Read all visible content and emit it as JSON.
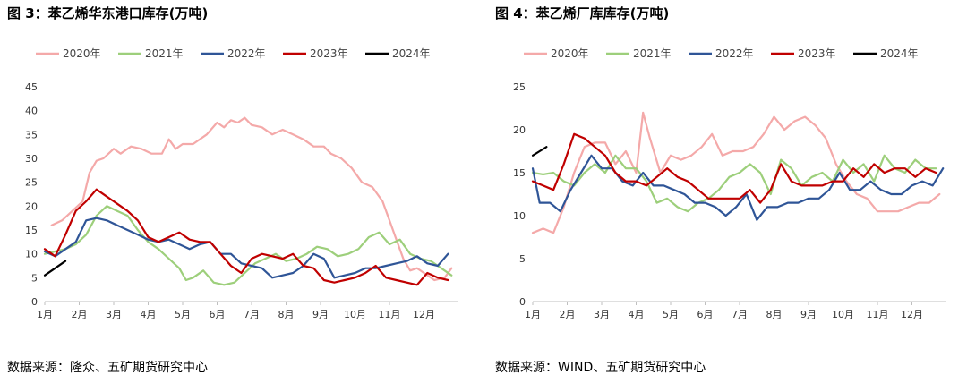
{
  "charts": [
    {
      "title": "图 3：苯乙烯华东港口库存(万吨)",
      "source": "数据来源：隆众、五矿期货研究中心"
    },
    {
      "title": "图 4：苯乙烯厂库库存(万吨)",
      "source": "数据来源：WIND、五矿期货研究中心"
    }
  ],
  "chart_data": [
    {
      "type": "line",
      "title": "图 3：苯乙烯华东港口库存(万吨)",
      "ylim": [
        0,
        45
      ],
      "yticks": [
        0,
        5,
        10,
        15,
        20,
        25,
        30,
        35,
        40,
        45
      ],
      "xlim": [
        1,
        13
      ],
      "xticks": [
        "1月",
        "2月",
        "3月",
        "4月",
        "5月",
        "6月",
        "7月",
        "8月",
        "9月",
        "10月",
        "11月",
        "12月"
      ],
      "legend_position": "top",
      "grid": false,
      "series": [
        {
          "name": "2020年",
          "color": "#f4a9a9",
          "x": [
            1.2,
            1.5,
            1.8,
            2.1,
            2.3,
            2.5,
            2.7,
            3.0,
            3.2,
            3.5,
            3.8,
            4.1,
            4.4,
            4.6,
            4.8,
            5.0,
            5.3,
            5.7,
            6.0,
            6.2,
            6.4,
            6.6,
            6.8,
            7.0,
            7.3,
            7.6,
            7.9,
            8.2,
            8.5,
            8.8,
            9.1,
            9.3,
            9.6,
            9.9,
            10.2,
            10.5,
            10.8,
            11.0,
            11.2,
            11.4,
            11.6,
            11.8,
            12.0,
            12.3,
            12.6,
            12.8
          ],
          "values": [
            16,
            17,
            19,
            21,
            27,
            29.5,
            30,
            32,
            31,
            32.5,
            32,
            31,
            31,
            34,
            32,
            33,
            33,
            35,
            37.5,
            36.5,
            38,
            37.5,
            38.5,
            37,
            36.5,
            35,
            36,
            35,
            34,
            32.5,
            32.5,
            31,
            30,
            28,
            25,
            24,
            21,
            17,
            13,
            9,
            6.5,
            7,
            6,
            4.5,
            5,
            7
          ]
        },
        {
          "name": "2021年",
          "color": "#9dcf7b",
          "x": [
            1.0,
            1.3,
            1.6,
            1.9,
            2.2,
            2.5,
            2.8,
            3.1,
            3.4,
            3.7,
            4.0,
            4.3,
            4.6,
            4.9,
            5.1,
            5.3,
            5.6,
            5.9,
            6.2,
            6.5,
            6.8,
            7.1,
            7.4,
            7.7,
            8.0,
            8.3,
            8.6,
            8.9,
            9.2,
            9.5,
            9.8,
            10.1,
            10.4,
            10.7,
            11.0,
            11.3,
            11.6,
            11.9,
            12.2,
            12.5,
            12.8
          ],
          "values": [
            10,
            10.5,
            11,
            12,
            14,
            18,
            20,
            19,
            18,
            15,
            12.5,
            11,
            9,
            7,
            4.5,
            5,
            6.5,
            4,
            3.5,
            4,
            6,
            8,
            9,
            10,
            8.5,
            9,
            10,
            11.5,
            11,
            9.5,
            10,
            11,
            13.5,
            14.5,
            12,
            13,
            10,
            9,
            8.5,
            7,
            5.5
          ]
        },
        {
          "name": "2022年",
          "color": "#2f5597",
          "x": [
            1.0,
            1.3,
            1.6,
            1.9,
            2.2,
            2.5,
            2.8,
            3.1,
            3.4,
            3.7,
            4.0,
            4.3,
            4.6,
            4.9,
            5.2,
            5.5,
            5.8,
            6.1,
            6.4,
            6.7,
            7.0,
            7.3,
            7.6,
            7.9,
            8.2,
            8.5,
            8.8,
            9.1,
            9.4,
            9.7,
            10.0,
            10.3,
            10.6,
            10.9,
            11.2,
            11.5,
            11.8,
            12.1,
            12.4,
            12.7
          ],
          "values": [
            10.5,
            9.5,
            11,
            12.5,
            17,
            17.5,
            17,
            16,
            15,
            14,
            13,
            12.5,
            13,
            12,
            11,
            12,
            12.5,
            10,
            10,
            8,
            7.5,
            7,
            5,
            5.5,
            6,
            7.5,
            10,
            9,
            5,
            5.5,
            6,
            7,
            7,
            7.5,
            8,
            8.5,
            9.5,
            8,
            7.5,
            10
          ]
        },
        {
          "name": "2023年",
          "color": "#c00000",
          "x": [
            1.0,
            1.3,
            1.6,
            1.9,
            2.2,
            2.5,
            2.8,
            3.1,
            3.4,
            3.7,
            4.0,
            4.3,
            4.6,
            4.9,
            5.2,
            5.5,
            5.8,
            6.1,
            6.4,
            6.7,
            7.0,
            7.3,
            7.6,
            7.9,
            8.2,
            8.5,
            8.8,
            9.1,
            9.4,
            9.7,
            10.0,
            10.3,
            10.6,
            10.9,
            11.2,
            11.5,
            11.8,
            12.1,
            12.4,
            12.7
          ],
          "values": [
            11,
            9.5,
            14,
            19,
            21,
            23.5,
            22,
            20.5,
            19,
            17,
            13.5,
            12.5,
            13.5,
            14.5,
            13,
            12.5,
            12.5,
            10,
            7.5,
            6,
            9,
            10,
            9.5,
            9,
            10,
            7.5,
            7,
            4.5,
            4,
            4.5,
            5,
            6,
            7.5,
            5,
            4.5,
            4,
            3.5,
            6,
            5,
            4.5
          ]
        },
        {
          "name": "2024年",
          "color": "#000000",
          "x": [
            1.0,
            1.3,
            1.6
          ],
          "values": [
            5.5,
            7,
            8.5
          ]
        }
      ]
    },
    {
      "type": "line",
      "title": "图 4：苯乙烯厂库库存(万吨)",
      "ylim": [
        0,
        25
      ],
      "yticks": [
        0,
        5,
        10,
        15,
        20,
        25
      ],
      "xlim": [
        1,
        13
      ],
      "xticks": [
        "1月",
        "2月",
        "3月",
        "4月",
        "5月",
        "6月",
        "7月",
        "8月",
        "9月",
        "10月",
        "11月",
        "12月"
      ],
      "legend_position": "top",
      "grid": false,
      "series": [
        {
          "name": "2020年",
          "color": "#f4a9a9",
          "x": [
            1.0,
            1.3,
            1.6,
            1.9,
            2.2,
            2.5,
            2.8,
            3.1,
            3.4,
            3.7,
            4.0,
            4.2,
            4.4,
            4.7,
            5.0,
            5.3,
            5.6,
            5.9,
            6.2,
            6.5,
            6.8,
            7.1,
            7.4,
            7.7,
            8.0,
            8.3,
            8.6,
            8.9,
            9.2,
            9.5,
            9.8,
            10.1,
            10.4,
            10.7,
            11.0,
            11.3,
            11.6,
            11.9,
            12.2,
            12.5,
            12.8
          ],
          "values": [
            8,
            8.5,
            8,
            11,
            15,
            18,
            18.5,
            18.5,
            16,
            17.5,
            15,
            22,
            19,
            15,
            17,
            16.5,
            17,
            18,
            19.5,
            17,
            17.5,
            17.5,
            18,
            19.5,
            21.5,
            20,
            21,
            21.5,
            20.5,
            19,
            16,
            14,
            12.5,
            12,
            10.5,
            10.5,
            10.5,
            11,
            11.5,
            11.5,
            12.5
          ]
        },
        {
          "name": "2021年",
          "color": "#9dcf7b",
          "x": [
            1.0,
            1.3,
            1.6,
            1.9,
            2.2,
            2.5,
            2.8,
            3.1,
            3.4,
            3.7,
            4.0,
            4.3,
            4.6,
            4.9,
            5.2,
            5.5,
            5.8,
            6.1,
            6.4,
            6.7,
            7.0,
            7.3,
            7.6,
            7.9,
            8.2,
            8.5,
            8.8,
            9.1,
            9.4,
            9.7,
            10.0,
            10.3,
            10.6,
            10.9,
            11.2,
            11.5,
            11.8,
            12.1,
            12.4,
            12.7
          ],
          "values": [
            15,
            14.8,
            15,
            14,
            13.5,
            15,
            16,
            15,
            17,
            15.5,
            15.5,
            14,
            11.5,
            12,
            11,
            10.5,
            11.5,
            12,
            13,
            14.5,
            15,
            16,
            15,
            12.5,
            16.5,
            15.5,
            13.5,
            14.5,
            15,
            14,
            16.5,
            15,
            16,
            14,
            17,
            15.5,
            15,
            16.5,
            15.5,
            15.5
          ]
        },
        {
          "name": "2022年",
          "color": "#2f5597",
          "x": [
            1.0,
            1.2,
            1.5,
            1.8,
            2.1,
            2.4,
            2.7,
            3.0,
            3.3,
            3.6,
            3.9,
            4.2,
            4.5,
            4.8,
            5.1,
            5.4,
            5.7,
            6.0,
            6.3,
            6.6,
            6.9,
            7.2,
            7.5,
            7.8,
            8.1,
            8.4,
            8.7,
            9.0,
            9.3,
            9.6,
            9.9,
            10.2,
            10.5,
            10.8,
            11.1,
            11.4,
            11.7,
            12.0,
            12.3,
            12.6,
            12.9
          ],
          "values": [
            15.5,
            11.5,
            11.5,
            10.5,
            13,
            15,
            17,
            15.5,
            15.5,
            14,
            13.5,
            15,
            13.5,
            13.5,
            13,
            12.5,
            11.5,
            11.5,
            11,
            10,
            11,
            12.5,
            9.5,
            11,
            11,
            11.5,
            11.5,
            12,
            12,
            13,
            15,
            13,
            13,
            14,
            13,
            12.5,
            12.5,
            13.5,
            14,
            13.5,
            15.5
          ]
        },
        {
          "name": "2023年",
          "color": "#c00000",
          "x": [
            1.0,
            1.3,
            1.6,
            1.9,
            2.2,
            2.5,
            2.8,
            3.1,
            3.4,
            3.7,
            4.0,
            4.3,
            4.6,
            4.9,
            5.2,
            5.5,
            5.8,
            6.1,
            6.4,
            6.7,
            7.0,
            7.3,
            7.6,
            7.9,
            8.2,
            8.5,
            8.8,
            9.1,
            9.4,
            9.7,
            10.0,
            10.3,
            10.6,
            10.9,
            11.2,
            11.5,
            11.8,
            12.1,
            12.4,
            12.7
          ],
          "values": [
            14,
            13.5,
            13,
            16,
            19.5,
            19,
            18,
            17,
            15,
            14,
            14,
            13.5,
            14.5,
            15.5,
            14.5,
            14,
            13,
            12,
            12,
            12,
            12,
            13,
            11.5,
            13,
            16,
            14,
            13.5,
            13.5,
            13.5,
            14,
            14,
            15.5,
            14.5,
            16,
            15,
            15.5,
            15.5,
            14.5,
            15.5,
            15
          ]
        },
        {
          "name": "2024年",
          "color": "#000000",
          "x": [
            1.0,
            1.2,
            1.4
          ],
          "values": [
            17,
            17.5,
            18
          ]
        }
      ]
    }
  ]
}
